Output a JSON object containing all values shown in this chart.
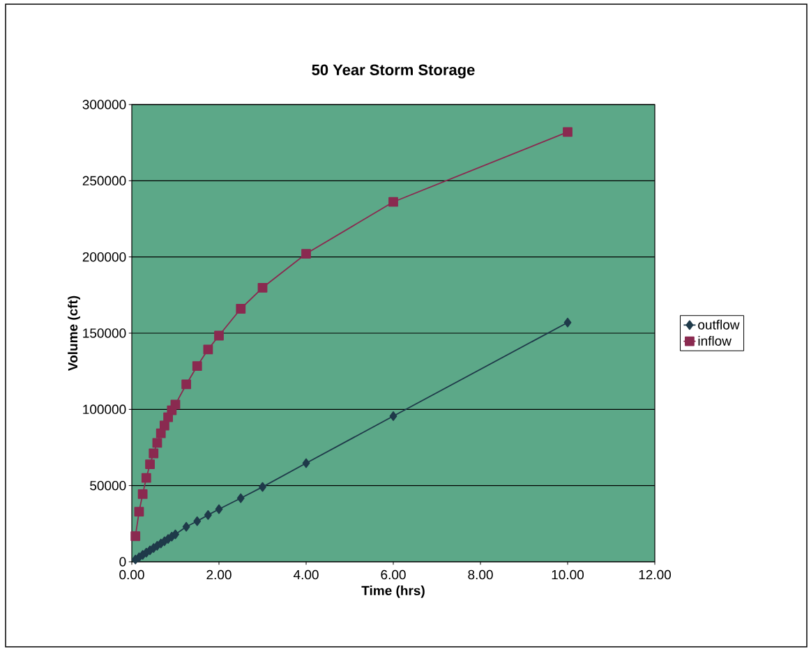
{
  "chart_data": {
    "type": "line",
    "title": "50 Year Storm Storage",
    "xlabel": "Time (hrs)",
    "ylabel": "Volume (cft)",
    "x": [
      0.083,
      0.167,
      0.25,
      0.333,
      0.417,
      0.5,
      0.583,
      0.667,
      0.75,
      0.833,
      0.917,
      1.0,
      1.25,
      1.5,
      1.75,
      2.0,
      2.5,
      3.0,
      4.0,
      6.0,
      10.0
    ],
    "series": [
      {
        "name": "outflow",
        "color": "#1f3a4a",
        "marker": "diamond",
        "values": [
          1500,
          3000,
          4500,
          6000,
          7500,
          9000,
          10500,
          12000,
          13500,
          15000,
          16500,
          18000,
          23000,
          26600,
          30700,
          34500,
          41700,
          49100,
          64700,
          95600,
          157000
        ]
      },
      {
        "name": "inflow",
        "color": "#8a2a50",
        "marker": "square",
        "values": [
          16800,
          32900,
          44400,
          55000,
          64000,
          71100,
          78000,
          84300,
          89400,
          94800,
          99400,
          103200,
          116400,
          128400,
          139300,
          148400,
          166000,
          179800,
          202100,
          236100,
          282000
        ]
      }
    ],
    "xlim": [
      0,
      12
    ],
    "ylim": [
      0,
      300000
    ],
    "xticks": [
      {
        "value": 0,
        "label": "0.00"
      },
      {
        "value": 2,
        "label": "2.00"
      },
      {
        "value": 4,
        "label": "4.00"
      },
      {
        "value": 6,
        "label": "6.00"
      },
      {
        "value": 8,
        "label": "8.00"
      },
      {
        "value": 10,
        "label": "10.00"
      },
      {
        "value": 12,
        "label": "12.00"
      }
    ],
    "yticks": [
      0,
      50000,
      100000,
      150000,
      200000,
      250000,
      300000
    ],
    "grid": "y",
    "legend": "right",
    "line_style": "solid"
  }
}
